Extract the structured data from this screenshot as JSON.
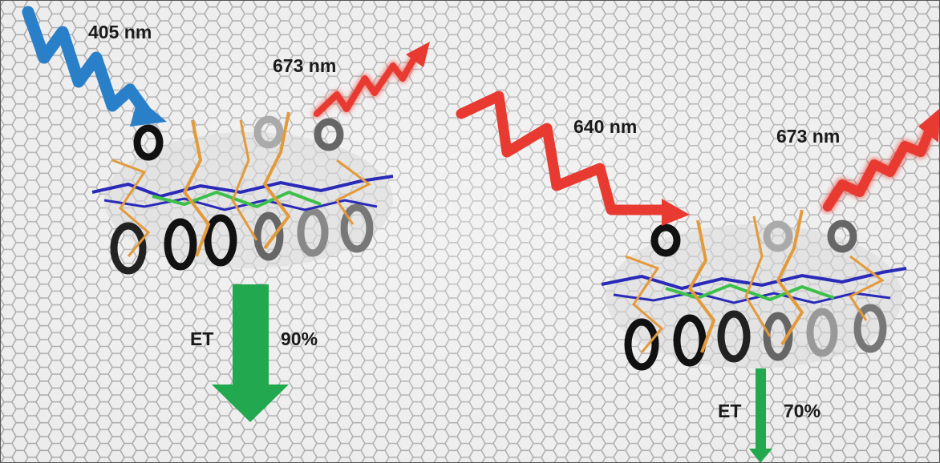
{
  "left_panel": {
    "excitation": "405 nm",
    "emission": "673 nm",
    "transfer_label": "ET",
    "transfer_efficiency": "90%"
  },
  "right_panel": {
    "excitation": "640 nm",
    "emission": "673 nm",
    "transfer_label": "ET",
    "transfer_efficiency": "70%"
  }
}
